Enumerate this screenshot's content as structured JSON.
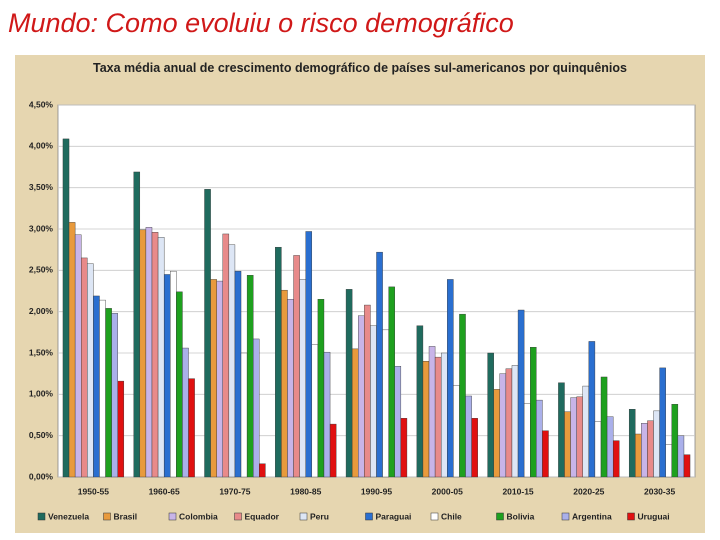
{
  "page_title": "Mundo: Como evoluiu o risco demográfico",
  "chart_data": {
    "type": "bar",
    "title": "Taxa média anual de crescimento demográfico de países sul-americanos  por quinquênios",
    "categories": [
      "1950-55",
      "1960-65",
      "1970-75",
      "1980-85",
      "1990-95",
      "2000-05",
      "2010-15",
      "2020-25",
      "2030-35"
    ],
    "ylim": [
      0,
      4.5
    ],
    "yticks": [
      {
        "value": 0,
        "label": "0,00%"
      },
      {
        "value": 0.5,
        "label": "0,50%"
      },
      {
        "value": 1,
        "label": "1,00%"
      },
      {
        "value": 1.5,
        "label": "1,50%"
      },
      {
        "value": 2,
        "label": "2,00%"
      },
      {
        "value": 2.5,
        "label": "2,50%"
      },
      {
        "value": 3,
        "label": "3,00%"
      },
      {
        "value": 3.5,
        "label": "3,50%"
      },
      {
        "value": 4,
        "label": "4,00%"
      },
      {
        "value": 4.5,
        "label": "4,50%"
      }
    ],
    "grid": true,
    "legend": "bottom",
    "series": [
      {
        "name": "Venezuela",
        "color": "#1f6b5e",
        "values": [
          4.09,
          3.69,
          3.48,
          2.78,
          2.27,
          1.83,
          1.5,
          1.14,
          0.82
        ]
      },
      {
        "name": "Brasil",
        "color": "#e89a3c",
        "values": [
          3.08,
          2.99,
          2.39,
          2.26,
          1.55,
          1.4,
          1.06,
          0.79,
          0.52
        ]
      },
      {
        "name": "Colombia",
        "color": "#c8b4e8",
        "values": [
          2.93,
          3.02,
          2.37,
          2.15,
          1.95,
          1.58,
          1.25,
          0.96,
          0.65
        ]
      },
      {
        "name": "Equador",
        "color": "#e88a8a",
        "values": [
          2.65,
          2.96,
          2.94,
          2.68,
          2.08,
          1.45,
          1.31,
          0.97,
          0.68
        ]
      },
      {
        "name": "Peru",
        "color": "#dde6f5",
        "values": [
          2.58,
          2.9,
          2.81,
          2.39,
          1.83,
          1.5,
          1.35,
          1.1,
          0.8
        ]
      },
      {
        "name": "Paraguai",
        "color": "#2a6fd0",
        "values": [
          2.19,
          2.45,
          2.49,
          2.97,
          2.72,
          2.39,
          2.02,
          1.64,
          1.32
        ]
      },
      {
        "name": "Chile",
        "color": "#ffffff",
        "values": [
          2.14,
          2.49,
          1.5,
          1.6,
          1.78,
          1.11,
          0.89,
          0.67,
          0.39
        ]
      },
      {
        "name": "Bolivia",
        "color": "#1ea01e",
        "values": [
          2.04,
          2.24,
          2.44,
          2.15,
          2.3,
          1.97,
          1.57,
          1.21,
          0.88
        ]
      },
      {
        "name": "Argentina",
        "color": "#aab0ea",
        "values": [
          1.98,
          1.56,
          1.67,
          1.51,
          1.34,
          0.98,
          0.93,
          0.73,
          0.5
        ]
      },
      {
        "name": "Uruguai",
        "color": "#e01010",
        "values": [
          1.16,
          1.19,
          0.16,
          0.64,
          0.71,
          0.71,
          0.56,
          0.44,
          0.27
        ]
      }
    ]
  }
}
